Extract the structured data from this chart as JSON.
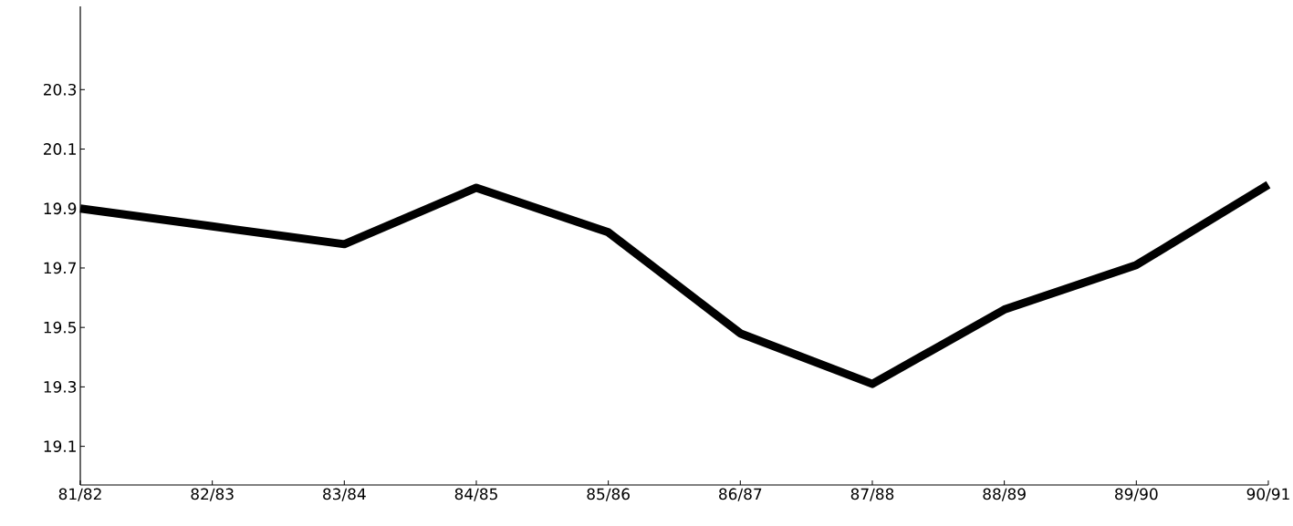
{
  "chart_data": {
    "type": "line",
    "categories": [
      "81/82",
      "82/83",
      "83/84",
      "84/85",
      "85/86",
      "86/87",
      "87/88",
      "88/89",
      "89/90",
      "90/91"
    ],
    "series": [
      {
        "color": "#000000",
        "values": [
          19.9,
          19.84,
          19.78,
          19.97,
          19.82,
          19.48,
          19.31,
          19.56,
          19.71,
          19.98
        ]
      }
    ],
    "ylim": [
      18.97,
      20.58
    ],
    "yticks": [
      19.1,
      19.3,
      19.5,
      19.7,
      19.9,
      20.1,
      20.3
    ],
    "marker": "none",
    "line_style": "solid"
  }
}
